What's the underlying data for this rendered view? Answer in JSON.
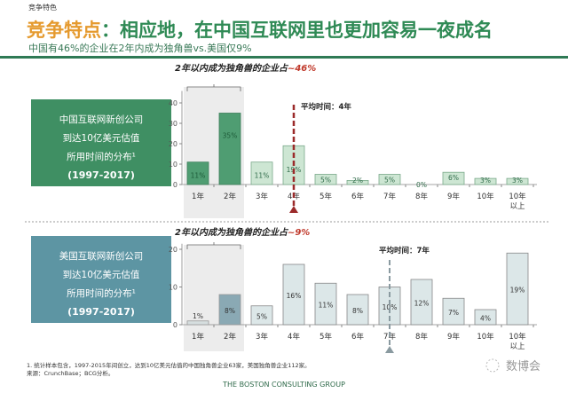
{
  "header": {
    "section_label": "竞争特色",
    "title_prefix": "竞争特点",
    "title_rest": "：相应地，在中国互联网里也更加容易一夜成名",
    "subtitle": "中国有46%的企业在2年内成为独角兽vs.美国仅9%"
  },
  "colors": {
    "title_orange": "#e59a2e",
    "title_green": "#2f8a55",
    "rule": "#2f7a55",
    "china_box": "#3f8f63",
    "us_box": "#5d95a3",
    "avg_red": "#9b2a2a"
  },
  "chart_data": [
    {
      "type": "bar",
      "panel_label": [
        "中国互联网新创公司",
        "到达10亿美元估值",
        "所用时间的分布¹",
        "(1997-2017)"
      ],
      "callout_prefix": "2年以内成为独角兽的企业占",
      "callout_value": "~46%",
      "avg_label": "平均时间：4年",
      "avg_category": "4年",
      "categories": [
        "1年",
        "2年",
        "3年",
        "4年",
        "5年",
        "6年",
        "7年",
        "8年",
        "9年",
        "10年",
        "10年以上"
      ],
      "values": [
        11,
        35,
        11,
        19,
        5,
        2,
        5,
        0,
        6,
        3,
        3
      ],
      "data_labels": [
        "11%",
        "35%",
        "11%",
        "19%",
        "5%",
        "2%",
        "5%",
        "0%",
        "6%",
        "3%",
        "3%"
      ],
      "yticks": [
        0,
        10,
        20,
        30,
        40
      ],
      "ylim": [
        0,
        45
      ],
      "highlighted": [
        "1年",
        "2年"
      ]
    },
    {
      "type": "bar",
      "panel_label": [
        "美国互联网新创公司",
        "到达10亿美元估值",
        "所用时间的分布¹",
        "(1997-2017)"
      ],
      "callout_prefix": "2年以内成为独角兽的企业占",
      "callout_value": "~9%",
      "avg_label": "平均时间：7年",
      "avg_category": "7年",
      "categories": [
        "1年",
        "2年",
        "3年",
        "4年",
        "5年",
        "6年",
        "7年",
        "8年",
        "9年",
        "10年",
        "10年以上"
      ],
      "values": [
        1,
        8,
        5,
        16,
        11,
        8,
        10,
        12,
        7,
        4,
        19
      ],
      "data_labels": [
        "1%",
        "8%",
        "5%",
        "16%",
        "11%",
        "8%",
        "10%",
        "12%",
        "7%",
        "4%",
        "19%"
      ],
      "yticks": [
        0,
        10,
        20
      ],
      "ylim": [
        0,
        21
      ],
      "highlighted": [
        "1年",
        "2年"
      ]
    }
  ],
  "footer": {
    "note": "1. 统计样本包含，1997-2015年间创立，达到10亿美元估值的中国独角兽企业63家，美国独角兽企业112家。",
    "source": "来源：CrunchBase；BCG分析。",
    "brand": "THE BOSTON CONSULTING GROUP",
    "watermark": "数博会"
  }
}
